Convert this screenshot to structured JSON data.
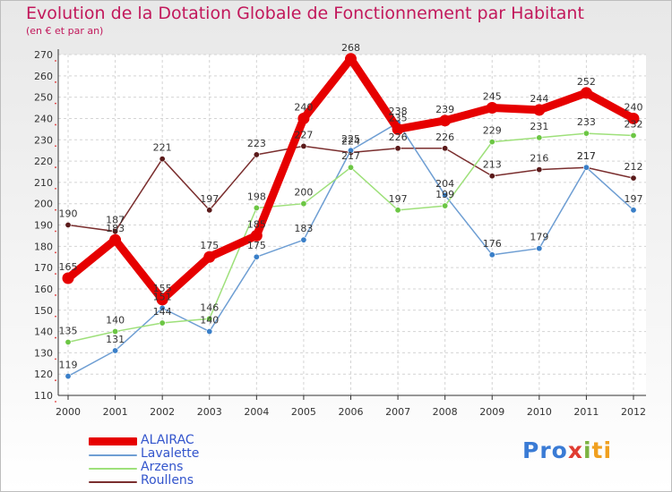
{
  "title": "Evolution de la Dotation Globale de Fonctionnement par Habitant",
  "subtitle": "(en € et par an)",
  "logo": {
    "part1": "Pro",
    "part2": "x",
    "part3": "i",
    "part4": "ti"
  },
  "legend_items": [
    {
      "name": "ALAIRAC",
      "color": "#e60000"
    },
    {
      "name": "Lavalette",
      "color": "#6e9ed3"
    },
    {
      "name": "Arzens",
      "color": "#9ee07a"
    },
    {
      "name": "Roullens",
      "color": "#7a2e2e"
    }
  ],
  "chart_data": {
    "type": "line",
    "x": [
      "2000",
      "2001",
      "2002",
      "2003",
      "2004",
      "2005",
      "2006",
      "2007",
      "2008",
      "2009",
      "2010",
      "2011",
      "2012"
    ],
    "ylim": [
      110,
      270
    ],
    "yticks": [
      110,
      120,
      130,
      140,
      150,
      160,
      170,
      180,
      190,
      200,
      210,
      220,
      230,
      240,
      250,
      260,
      270
    ],
    "grid": true,
    "legend_position": "bottom-left",
    "series": [
      {
        "name": "ALAIRAC",
        "color": "#e60000",
        "point_color": "#e60000",
        "values": [
          165,
          183,
          155,
          175,
          185,
          240,
          268,
          235,
          239,
          245,
          244,
          252,
          240
        ],
        "labels": [
          "165",
          "183",
          "155",
          "175",
          "185",
          "240",
          "268",
          "235",
          "239",
          "245",
          "244",
          "252",
          "240"
        ]
      },
      {
        "name": "Lavalette",
        "color": "#6e9ed3",
        "point_color": "#3a7fc8",
        "values": [
          119,
          131,
          151,
          140,
          175,
          183,
          225,
          238,
          204,
          176,
          179,
          217,
          197
        ],
        "labels": [
          "119",
          "131",
          "151",
          "140",
          "175",
          "183",
          "225",
          "238",
          "204",
          "176",
          "179",
          "217",
          "197"
        ]
      },
      {
        "name": "Arzens",
        "color": "#9ee07a",
        "point_color": "#6cc644",
        "values": [
          135,
          140,
          144,
          146,
          198,
          200,
          217,
          197,
          199,
          229,
          231,
          233,
          232
        ],
        "labels": [
          "135",
          "140",
          "144",
          "146",
          "198",
          "200",
          "217",
          "197",
          "199",
          "229",
          "231",
          "233",
          "232"
        ]
      },
      {
        "name": "Roullens",
        "color": "#7a2e2e",
        "point_color": "#5a1a1a",
        "values": [
          190,
          187,
          221,
          197,
          223,
          227,
          224,
          226,
          226,
          213,
          216,
          217,
          212
        ],
        "labels": [
          "190",
          "187",
          "221",
          "197",
          "223",
          "227",
          "224",
          "226",
          "226",
          "213",
          "216",
          "217",
          "212"
        ]
      }
    ]
  }
}
